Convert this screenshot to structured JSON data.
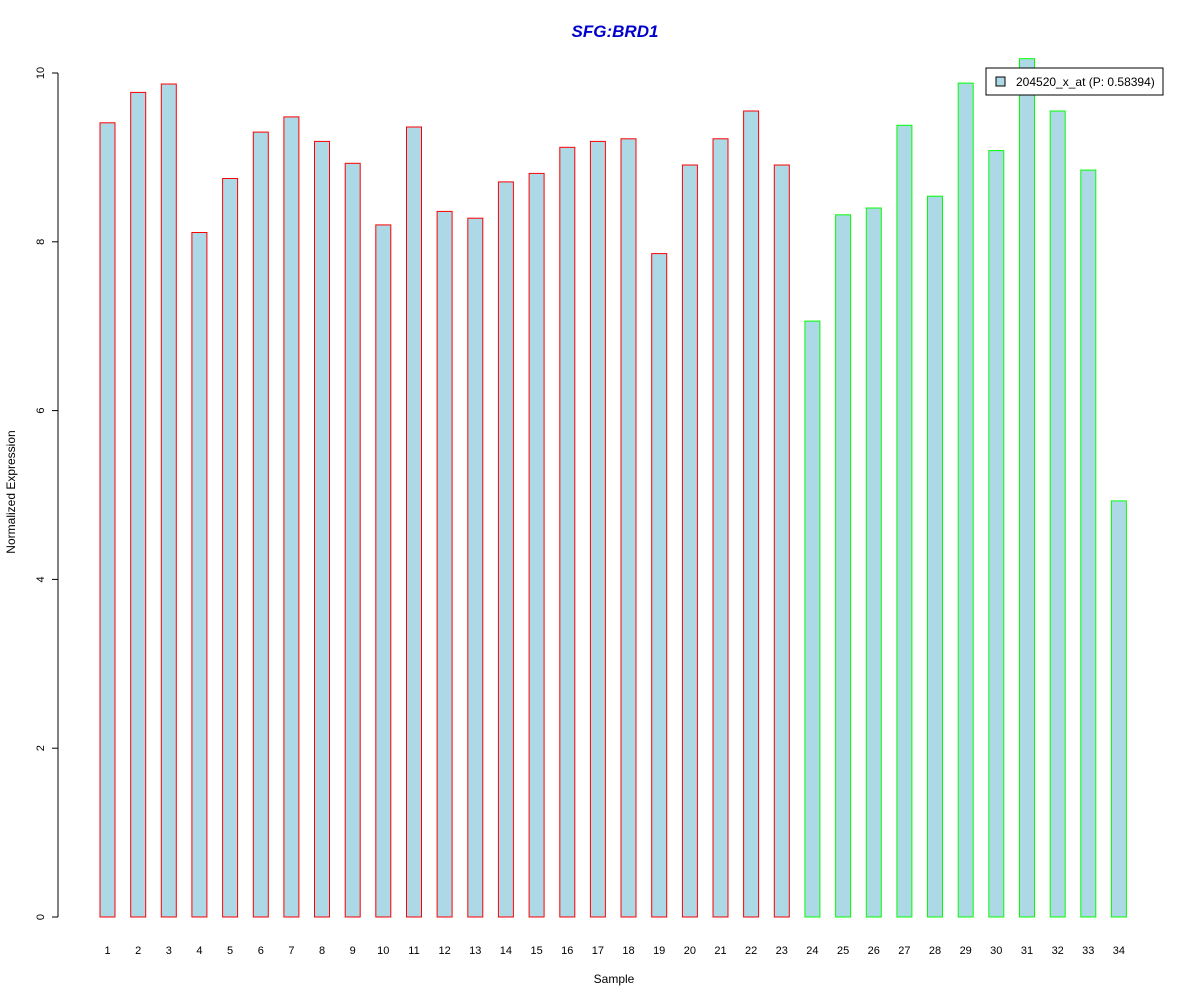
{
  "chart_data": {
    "type": "bar",
    "title": "SFG:BRD1",
    "title_color": "#0000CC",
    "xlabel": "Sample",
    "ylabel": "Normalized Expression",
    "ylim": [
      0,
      10
    ],
    "y_ticks": [
      0,
      2,
      4,
      6,
      8,
      10
    ],
    "categories": [
      "1",
      "2",
      "3",
      "4",
      "5",
      "6",
      "7",
      "8",
      "9",
      "10",
      "11",
      "12",
      "13",
      "14",
      "15",
      "16",
      "17",
      "18",
      "19",
      "20",
      "21",
      "22",
      "23",
      "24",
      "25",
      "26",
      "27",
      "28",
      "29",
      "30",
      "31",
      "32",
      "33",
      "34"
    ],
    "values": [
      9.41,
      9.77,
      9.87,
      8.11,
      8.75,
      9.3,
      9.48,
      9.19,
      8.93,
      8.2,
      9.36,
      8.36,
      8.28,
      8.71,
      8.81,
      9.12,
      9.19,
      9.22,
      7.86,
      8.91,
      9.22,
      9.55,
      8.91,
      7.06,
      8.32,
      8.4,
      9.38,
      8.54,
      9.88,
      9.08,
      10.17,
      9.55,
      8.85,
      4.93
    ],
    "groups": [
      "red",
      "red",
      "red",
      "red",
      "red",
      "red",
      "red",
      "red",
      "red",
      "red",
      "red",
      "red",
      "red",
      "red",
      "red",
      "red",
      "red",
      "red",
      "red",
      "red",
      "red",
      "red",
      "red",
      "green",
      "green",
      "green",
      "green",
      "green",
      "green",
      "green",
      "green",
      "green",
      "green",
      "green"
    ],
    "fill_color": "#ADD8E6",
    "group_colors": {
      "red": "#FF0000",
      "green": "#00FF00"
    },
    "legend": {
      "label": "204520_x_at (P: 0.58394)",
      "position": "top-right"
    },
    "grid": false
  }
}
